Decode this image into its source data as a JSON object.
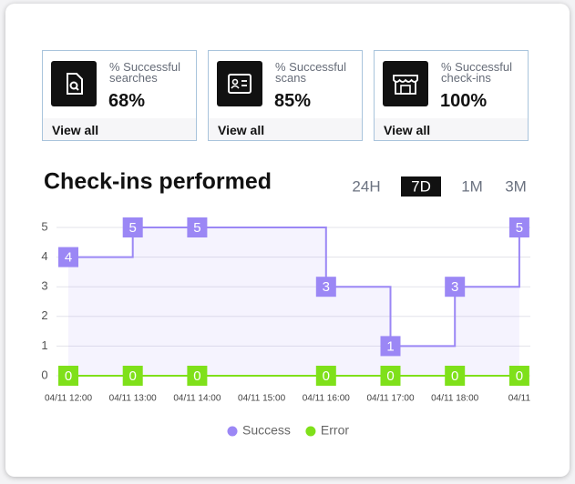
{
  "cards": [
    {
      "label": "% Successful searches",
      "value": "68%",
      "link": "View all"
    },
    {
      "label": "% Successful scans",
      "value": "85%",
      "link": "View all"
    },
    {
      "label": "% Successful check-ins",
      "value": "100%",
      "link": "View all"
    }
  ],
  "chart_data": {
    "type": "line",
    "title": "Check-ins performed",
    "ranges": [
      "24H",
      "7D",
      "1M",
      "3M"
    ],
    "selected_range": "7D",
    "categories": [
      "04/11 12:00",
      "04/11 13:00",
      "04/11 14:00",
      "04/11 15:00",
      "04/11 16:00",
      "04/11 17:00",
      "04/11 18:00",
      "04/11"
    ],
    "series": [
      {
        "name": "Success",
        "color": "#9b87f5",
        "values": [
          4,
          5,
          5,
          null,
          3,
          1,
          3,
          5
        ]
      },
      {
        "name": "Error",
        "color": "#7fe01a",
        "values": [
          0,
          0,
          0,
          null,
          0,
          0,
          0,
          0
        ]
      }
    ],
    "ylim": [
      0,
      5
    ],
    "yticks": [
      0,
      1,
      2,
      3,
      4,
      5
    ],
    "grid": true,
    "step": true
  }
}
